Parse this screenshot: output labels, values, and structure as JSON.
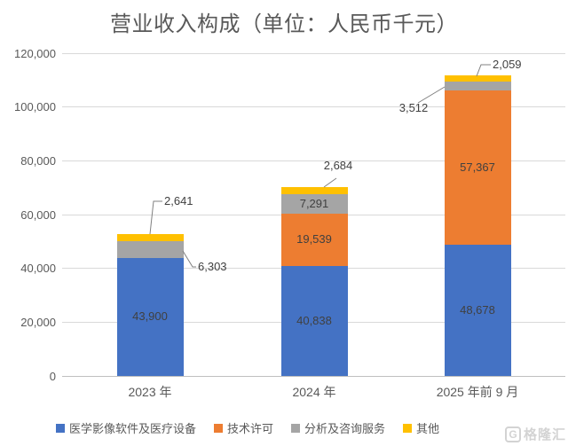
{
  "chart_data": {
    "type": "bar",
    "stacked": true,
    "title": "营业收入构成（单位：人民币千元）",
    "categories": [
      "2023 年",
      "2024 年",
      "2025 年前 9 月"
    ],
    "series": [
      {
        "name": "医学影像软件及医疗设备",
        "color": "#4472C4",
        "values": [
          43900,
          40838,
          48678
        ]
      },
      {
        "name": "技术许可",
        "color": "#ED7D31",
        "values": [
          0,
          19539,
          57367
        ]
      },
      {
        "name": "分析及咨询服务",
        "color": "#A5A5A5",
        "values": [
          6303,
          7291,
          3512
        ]
      },
      {
        "name": "其他",
        "color": "#FFC000",
        "values": [
          2641,
          2684,
          2059
        ]
      }
    ],
    "ylim": [
      0,
      120000
    ],
    "y_ticks": [
      "0",
      "20,000",
      "40,000",
      "60,000",
      "80,000",
      "100,000",
      "120,000"
    ],
    "grid": true,
    "legend_position": "bottom",
    "inside_labels": [
      "43,900",
      "40,838",
      "48,678",
      "19,539",
      "57,367",
      "7,291"
    ],
    "callout_labels": [
      "2,641",
      "6,303",
      "2,684",
      "3,512",
      "2,059"
    ],
    "colors": {
      "grid": "#d9d9d9",
      "axis": "#bfbfbf",
      "tick_text": "#595959",
      "data_label": "#404040",
      "leader_line": "#808080"
    }
  },
  "watermark": {
    "icon": "G",
    "text": "格隆汇"
  }
}
